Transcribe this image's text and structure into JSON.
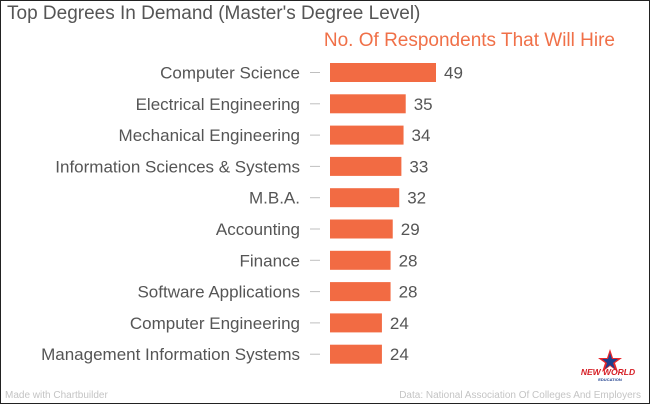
{
  "title": "Top Degrees In Demand (Master's Degree Level)",
  "footer_left": "Made with Chartbuilder",
  "footer_right": "Data: National Association Of Colleges And Employers",
  "logo": {
    "text_top": "NEW WORLD",
    "text_bottom": "EDUCATION"
  },
  "colors": {
    "bar": "#f26b43",
    "title": "#555555",
    "label": "#555555",
    "subtitle": "#f07048",
    "footer": "#c4c4c4"
  },
  "chart_data": {
    "type": "bar",
    "orientation": "horizontal",
    "title": "Top Degrees In Demand (Master's Degree Level)",
    "series": [
      {
        "name": "No. Of Respondents That Will Hire",
        "values": [
          49,
          35,
          34,
          33,
          32,
          29,
          28,
          28,
          24,
          24
        ]
      }
    ],
    "categories": [
      "Computer Science",
      "Electrical Engineering",
      "Mechanical Engineering",
      "Information Sciences & Systems",
      "M.B.A.",
      "Accounting",
      "Finance",
      "Software Applications",
      "Computer Engineering",
      "Management Information Systems"
    ],
    "data_labels": true,
    "xlim": [
      0,
      49
    ]
  }
}
